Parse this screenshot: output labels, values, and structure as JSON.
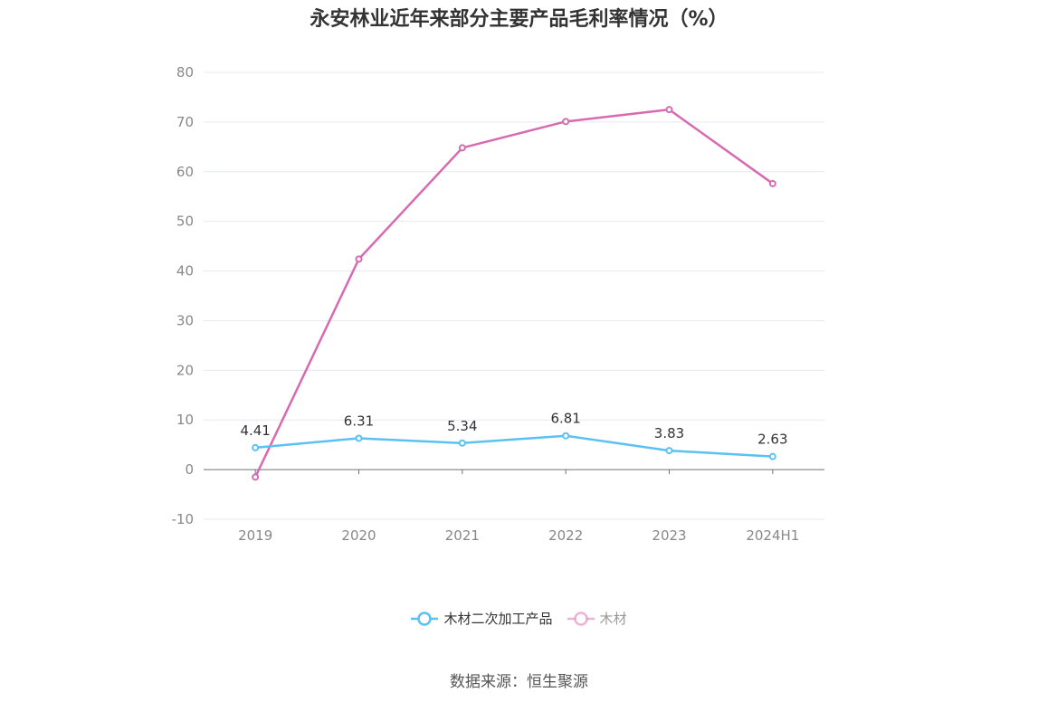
{
  "chart_data": {
    "type": "line",
    "title": "永安林业近年来部分主要产品毛利率情况（%）",
    "categories": [
      "2019",
      "2020",
      "2021",
      "2022",
      "2023",
      "2024H1"
    ],
    "ylim": [
      -10,
      80
    ],
    "yticks": [
      80,
      70,
      60,
      50,
      40,
      30,
      20,
      10,
      0,
      -10
    ],
    "grid": true,
    "legend_position": "bottom",
    "series": [
      {
        "name": "木材二次加工产品",
        "color": "#5bc0f2",
        "values": [
          4.41,
          6.31,
          5.34,
          6.81,
          3.83,
          2.63
        ],
        "data_labels": [
          "4.41",
          "6.31",
          "5.34",
          "6.81",
          "3.83",
          "2.63"
        ]
      },
      {
        "name": "木材",
        "color": "#d76ab0",
        "values": [
          -1.5,
          42.4,
          64.8,
          70.1,
          72.5,
          57.6
        ]
      }
    ]
  },
  "footer": {
    "source": "数据来源：恒生聚源"
  }
}
